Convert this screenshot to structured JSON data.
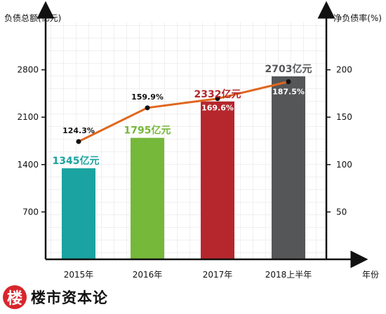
{
  "brand": {
    "logo_char": "楼",
    "name": "楼市资本论",
    "logo_color": "#d8262d"
  },
  "chart_data": {
    "type": "bar+line",
    "categories": [
      "2015年",
      "2016年",
      "2017年",
      "2018上半年"
    ],
    "x_unit_label": "年份",
    "bars": {
      "axis_label": "负债总额(亿元)",
      "values": [
        1345,
        1795,
        2332,
        2703
      ],
      "labels": [
        "1345亿元",
        "1795亿元",
        "2332亿元",
        "2703亿元"
      ],
      "colors": [
        "#1aa3a0",
        "#76b83a",
        "#b5272d",
        "#555658"
      ],
      "label_colors": [
        "#1aa3a0",
        "#76b83a",
        "#b5272d",
        "#555658"
      ],
      "ylim": [
        0,
        3500
      ],
      "ticks": [
        700,
        1400,
        2100,
        2800
      ]
    },
    "line": {
      "axis_label": "净负债率(%)",
      "values": [
        124.3,
        159.9,
        169.6,
        187.5
      ],
      "labels": [
        "124.3%",
        "159.9%",
        "169.6%",
        "187.5%"
      ],
      "color": "#e0661e",
      "ylim": [
        0,
        250
      ],
      "ticks": [
        50,
        100,
        150,
        200
      ]
    },
    "grid": true
  }
}
